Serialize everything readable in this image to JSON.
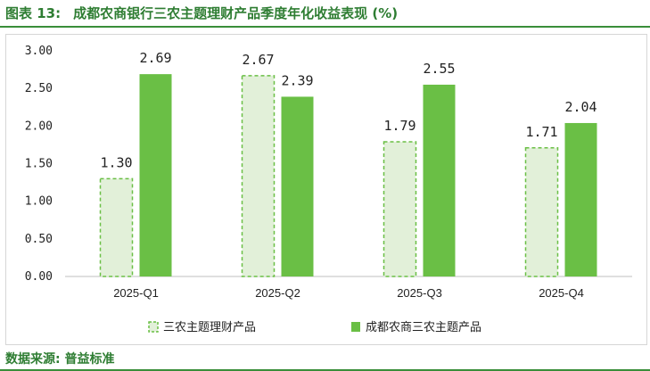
{
  "figure": {
    "label": "图表 13:",
    "title": "成都农商银行三农主题理财产品季度年化收益表现 (%)",
    "source": "数据来源: 普益标准"
  },
  "colors": {
    "series1_fill": "#e2f0d9",
    "series1_stroke": "#6abf45",
    "series2_fill": "#6abf45",
    "caption": "#2e7d32",
    "axis": "#bfbfbf"
  },
  "chart_data": {
    "type": "bar",
    "categories": [
      "2025-Q1",
      "2025-Q2",
      "2025-Q3",
      "2025-Q4"
    ],
    "series": [
      {
        "name": "三农主题理财产品",
        "values": [
          1.3,
          2.67,
          1.79,
          1.71
        ],
        "labels": [
          "1.30",
          "2.67",
          "1.79",
          "1.71"
        ],
        "style": "dashed-outline"
      },
      {
        "name": "成都农商三农主题产品",
        "values": [
          2.69,
          2.39,
          2.55,
          2.04
        ],
        "labels": [
          "2.69",
          "2.39",
          "2.55",
          "2.04"
        ],
        "style": "solid"
      }
    ],
    "ylim": [
      0,
      3.0
    ],
    "yticks": [
      "0.00",
      "0.50",
      "1.00",
      "1.50",
      "2.00",
      "2.50",
      "3.00"
    ],
    "ytick_values": [
      0,
      0.5,
      1.0,
      1.5,
      2.0,
      2.5,
      3.0
    ],
    "gridlines": false,
    "legend_position": "bottom",
    "xlabel": "",
    "ylabel": ""
  }
}
